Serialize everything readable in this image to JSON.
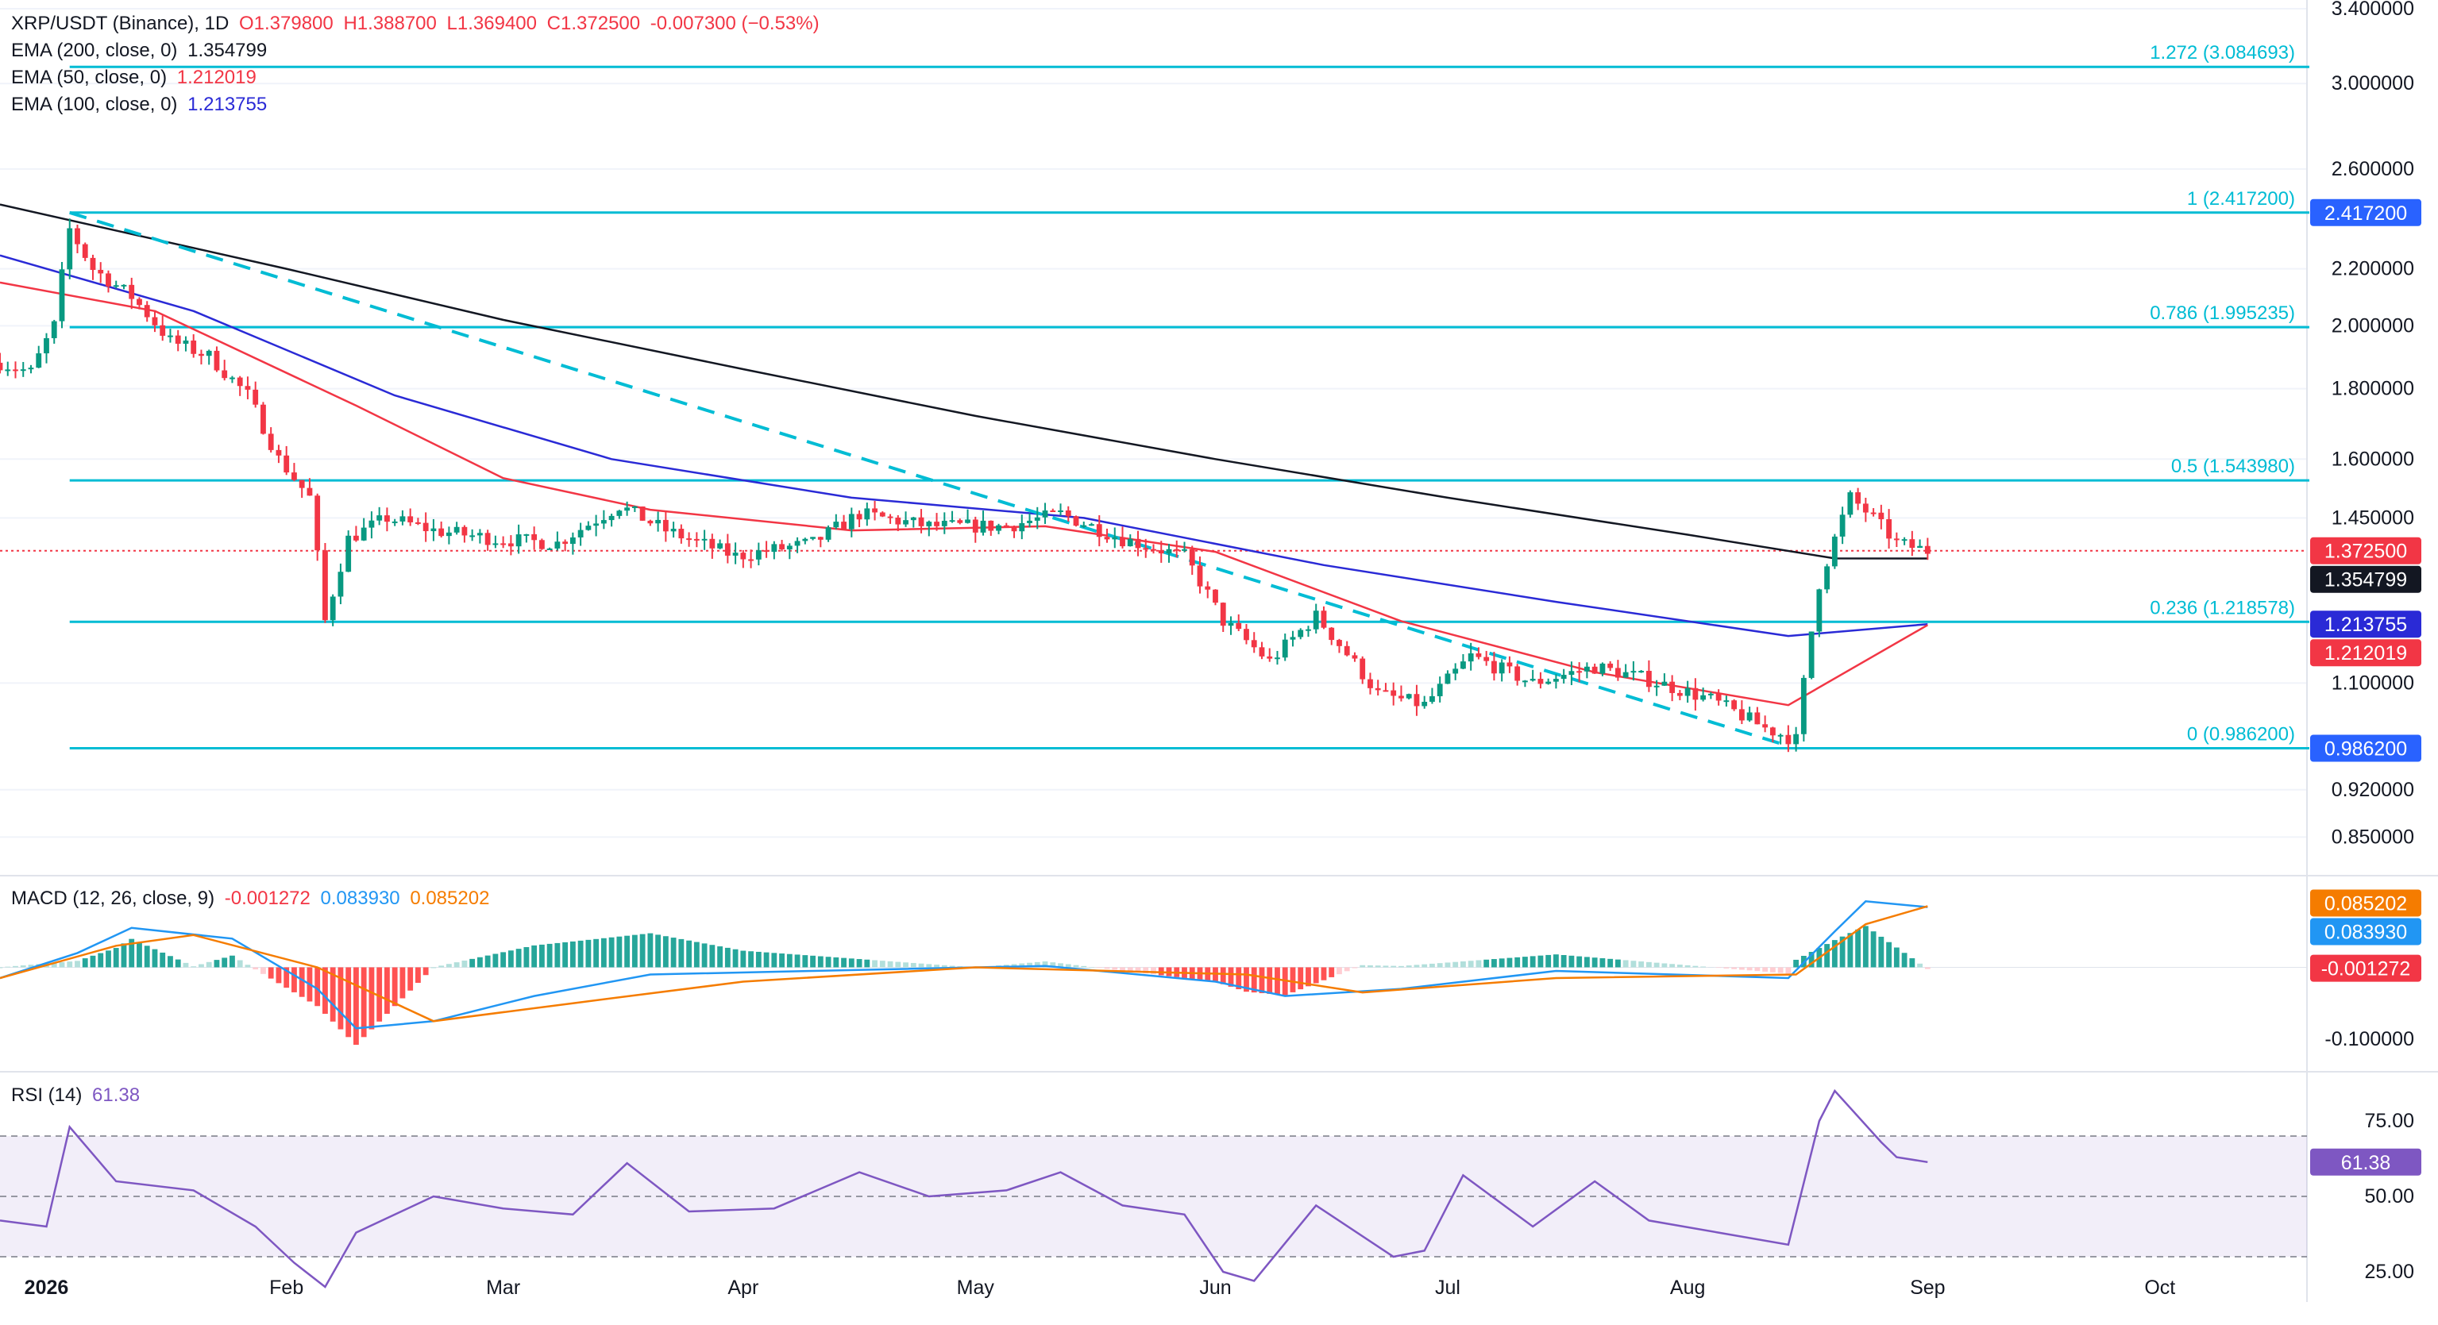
{
  "header": {
    "symbol": "XRP/USDT (Binance), 1D",
    "open": "O1.379800",
    "high": "H1.388700",
    "low": "L1.369400",
    "close": "C1.372500",
    "change": "-0.007300 (−0.53%)"
  },
  "ema_legend": [
    {
      "label": "EMA (200, close, 0)",
      "value": "1.354799",
      "color": "#131722"
    },
    {
      "label": "EMA (50, close, 0)",
      "value": "1.212019",
      "color": "#f23645"
    },
    {
      "label": "EMA (100, close, 0)",
      "value": "1.213755",
      "color": "#2a2ad6"
    }
  ],
  "macd_legend": {
    "label": "MACD (12, 26, close, 9)",
    "hist": "-0.001272",
    "macd": "0.083930",
    "signal": "0.085202"
  },
  "rsi_legend": {
    "label": "RSI (14)",
    "value": "61.38"
  },
  "colors": {
    "up": "#089981",
    "down": "#f23645",
    "fib": "#00bcd4",
    "ema200": "#131722",
    "ema50": "#f23645",
    "ema100": "#2a2ad6",
    "macd": "#2196f3",
    "signal": "#f57c00",
    "rsi": "#7e57c2"
  },
  "chart_data": {
    "type": "candlestick",
    "price_axis": {
      "ticks": [
        "3.400000",
        "3.000000",
        "2.600000",
        "2.200000",
        "2.000000",
        "1.800000",
        "1.600000",
        "1.450000",
        "1.100000",
        "0.920000",
        "0.850000"
      ],
      "scale": "log",
      "range": [
        0.8,
        3.45
      ]
    },
    "time_axis": {
      "ticks": [
        "2026",
        "Feb",
        "Mar",
        "Apr",
        "May",
        "Jun",
        "Jul",
        "Aug",
        "Sep",
        "Oct"
      ],
      "range": [
        "2025-12-26",
        "2026-10-20"
      ]
    },
    "fib_levels": [
      {
        "label": "1.272 (3.084693)",
        "value": 3.084693
      },
      {
        "label": "1 (2.417200)",
        "value": 2.4172
      },
      {
        "label": "0.786 (1.995235)",
        "value": 1.995235
      },
      {
        "label": "0.5 (1.543980)",
        "value": 1.54398
      },
      {
        "label": "0.236 (1.218578)",
        "value": 1.218578
      },
      {
        "label": "0 (0.986200)",
        "value": 0.9862
      }
    ],
    "price_badges": [
      {
        "text": "2.417200",
        "value": 2.4172,
        "color": "#2962ff"
      },
      {
        "text": "1.372500",
        "value": 1.3725,
        "color": "#f23645"
      },
      {
        "text": "1.354799",
        "value": 1.354799,
        "color": "#131722"
      },
      {
        "text": "1.213755",
        "value": 1.213755,
        "color": "#2a2ad6"
      },
      {
        "text": "1.212019",
        "value": 1.212019,
        "color": "#f23645"
      },
      {
        "text": "0.986200",
        "value": 0.9862,
        "color": "#2962ff"
      }
    ],
    "current_price": 1.3725,
    "trendline": [
      {
        "date": "2026-01-04",
        "value": 2.417
      },
      {
        "date": "2026-08-14",
        "value": 0.99
      }
    ],
    "close_path": [
      [
        "2025-12-26",
        1.88
      ],
      [
        "2025-12-30",
        1.85
      ],
      [
        "2026-01-02",
        2.0
      ],
      [
        "2026-01-04",
        2.35
      ],
      [
        "2026-01-07",
        2.2
      ],
      [
        "2026-01-12",
        2.1
      ],
      [
        "2026-01-17",
        1.95
      ],
      [
        "2026-01-22",
        1.9
      ],
      [
        "2026-01-27",
        1.78
      ],
      [
        "2026-01-31",
        1.6
      ],
      [
        "2026-02-04",
        1.5
      ],
      [
        "2026-02-06",
        1.22
      ],
      [
        "2026-02-09",
        1.4
      ],
      [
        "2026-02-14",
        1.45
      ],
      [
        "2026-02-20",
        1.42
      ],
      [
        "2026-02-28",
        1.4
      ],
      [
        "2026-03-08",
        1.39
      ],
      [
        "2026-03-16",
        1.48
      ],
      [
        "2026-03-22",
        1.42
      ],
      [
        "2026-03-31",
        1.36
      ],
      [
        "2026-04-10",
        1.39
      ],
      [
        "2026-04-16",
        1.46
      ],
      [
        "2026-04-25",
        1.43
      ],
      [
        "2026-05-05",
        1.43
      ],
      [
        "2026-05-12",
        1.46
      ],
      [
        "2026-05-20",
        1.4
      ],
      [
        "2026-05-28",
        1.36
      ],
      [
        "2026-06-02",
        1.22
      ],
      [
        "2026-06-08",
        1.14
      ],
      [
        "2026-06-14",
        1.23
      ],
      [
        "2026-06-22",
        1.08
      ],
      [
        "2026-06-28",
        1.06
      ],
      [
        "2026-07-04",
        1.15
      ],
      [
        "2026-07-12",
        1.1
      ],
      [
        "2026-07-20",
        1.13
      ],
      [
        "2026-07-26",
        1.11
      ],
      [
        "2026-08-04",
        1.07
      ],
      [
        "2026-08-11",
        1.02
      ],
      [
        "2026-08-15",
        1.0
      ],
      [
        "2026-08-18",
        1.3
      ],
      [
        "2026-08-22",
        1.5
      ],
      [
        "2026-08-25",
        1.45
      ],
      [
        "2026-08-28",
        1.39
      ],
      [
        "2026-09-01",
        1.3725
      ]
    ],
    "ema200_path": [
      [
        "2025-12-26",
        2.45
      ],
      [
        "2026-02-01",
        2.2
      ],
      [
        "2026-03-01",
        2.02
      ],
      [
        "2026-04-01",
        1.86
      ],
      [
        "2026-05-01",
        1.72
      ],
      [
        "2026-06-01",
        1.6
      ],
      [
        "2026-07-01",
        1.5
      ],
      [
        "2026-08-01",
        1.41
      ],
      [
        "2026-08-20",
        1.355
      ],
      [
        "2026-09-01",
        1.3548
      ]
    ],
    "ema100_path": [
      [
        "2025-12-26",
        2.25
      ],
      [
        "2026-01-20",
        2.05
      ],
      [
        "2026-02-15",
        1.78
      ],
      [
        "2026-03-15",
        1.6
      ],
      [
        "2026-04-15",
        1.5
      ],
      [
        "2026-05-15",
        1.45
      ],
      [
        "2026-06-15",
        1.34
      ],
      [
        "2026-07-15",
        1.26
      ],
      [
        "2026-08-14",
        1.19
      ],
      [
        "2026-09-01",
        1.2138
      ]
    ],
    "ema50_path": [
      [
        "2025-12-26",
        2.15
      ],
      [
        "2026-01-15",
        2.05
      ],
      [
        "2026-02-10",
        1.75
      ],
      [
        "2026-03-01",
        1.55
      ],
      [
        "2026-03-20",
        1.47
      ],
      [
        "2026-04-15",
        1.42
      ],
      [
        "2026-05-10",
        1.43
      ],
      [
        "2026-06-01",
        1.37
      ],
      [
        "2026-06-25",
        1.22
      ],
      [
        "2026-07-20",
        1.12
      ],
      [
        "2026-08-14",
        1.06
      ],
      [
        "2026-09-01",
        1.212
      ]
    ],
    "macd_axis": {
      "ticks": [
        "-0.100000"
      ],
      "badges": [
        "0.085202",
        "0.083930",
        "-0.001272"
      ],
      "range": [
        -0.14,
        0.12
      ]
    },
    "macd_path": [
      [
        "2025-12-26",
        -0.015
      ],
      [
        "2026-01-05",
        0.02
      ],
      [
        "2026-01-12",
        0.055
      ],
      [
        "2026-01-25",
        0.04
      ],
      [
        "2026-02-05",
        -0.03
      ],
      [
        "2026-02-10",
        -0.085
      ],
      [
        "2026-02-20",
        -0.075
      ],
      [
        "2026-03-05",
        -0.04
      ],
      [
        "2026-03-20",
        -0.01
      ],
      [
        "2026-04-10",
        -0.005
      ],
      [
        "2026-05-10",
        0.002
      ],
      [
        "2026-06-01",
        -0.02
      ],
      [
        "2026-06-10",
        -0.04
      ],
      [
        "2026-06-25",
        -0.03
      ],
      [
        "2026-07-15",
        -0.005
      ],
      [
        "2026-08-14",
        -0.015
      ],
      [
        "2026-08-20",
        0.05
      ],
      [
        "2026-08-24",
        0.092
      ],
      [
        "2026-09-01",
        0.0839
      ]
    ],
    "signal_path": [
      [
        "2025-12-26",
        -0.015
      ],
      [
        "2026-01-10",
        0.03
      ],
      [
        "2026-01-20",
        0.045
      ],
      [
        "2026-02-05",
        0.0
      ],
      [
        "2026-02-20",
        -0.075
      ],
      [
        "2026-03-10",
        -0.05
      ],
      [
        "2026-04-01",
        -0.02
      ],
      [
        "2026-05-01",
        0.0
      ],
      [
        "2026-06-05",
        -0.01
      ],
      [
        "2026-06-20",
        -0.035
      ],
      [
        "2026-07-15",
        -0.015
      ],
      [
        "2026-08-15",
        -0.01
      ],
      [
        "2026-08-24",
        0.06
      ],
      [
        "2026-09-01",
        0.0852
      ]
    ],
    "rsi_axis": {
      "ticks": [
        "75.00",
        "50.00",
        "25.00"
      ],
      "range": [
        15,
        90
      ]
    },
    "rsi_path": [
      [
        "2025-12-26",
        42
      ],
      [
        "2026-01-01",
        40
      ],
      [
        "2026-01-04",
        73
      ],
      [
        "2026-01-10",
        55
      ],
      [
        "2026-01-20",
        52
      ],
      [
        "2026-01-28",
        40
      ],
      [
        "2026-02-02",
        28
      ],
      [
        "2026-02-06",
        20
      ],
      [
        "2026-02-10",
        38
      ],
      [
        "2026-02-20",
        50
      ],
      [
        "2026-03-01",
        46
      ],
      [
        "2026-03-10",
        44
      ],
      [
        "2026-03-17",
        61
      ],
      [
        "2026-03-25",
        45
      ],
      [
        "2026-04-05",
        46
      ],
      [
        "2026-04-16",
        58
      ],
      [
        "2026-04-25",
        50
      ],
      [
        "2026-05-05",
        52
      ],
      [
        "2026-05-12",
        58
      ],
      [
        "2026-05-20",
        47
      ],
      [
        "2026-05-28",
        44
      ],
      [
        "2026-06-02",
        25
      ],
      [
        "2026-06-06",
        22
      ],
      [
        "2026-06-14",
        47
      ],
      [
        "2026-06-24",
        30
      ],
      [
        "2026-06-28",
        32
      ],
      [
        "2026-07-03",
        57
      ],
      [
        "2026-07-12",
        40
      ],
      [
        "2026-07-20",
        55
      ],
      [
        "2026-07-27",
        42
      ],
      [
        "2026-08-05",
        38
      ],
      [
        "2026-08-14",
        34
      ],
      [
        "2026-08-18",
        75
      ],
      [
        "2026-08-20",
        85
      ],
      [
        "2026-08-26",
        68
      ],
      [
        "2026-08-28",
        63
      ],
      [
        "2026-09-01",
        61.38
      ]
    ]
  }
}
